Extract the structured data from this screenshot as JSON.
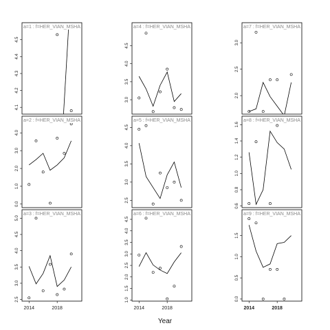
{
  "chart_data": {
    "type": "scatter",
    "xlabel": "Year",
    "x_ticks": [
      2014,
      2018
    ],
    "panels": [
      {
        "label": "a=1 : f=HER_VIAN_MSHA",
        "xlim": [
          2013,
          2021.5
        ],
        "ylim": [
          4.06,
          4.56
        ],
        "y_ticks": [
          4.1,
          4.2,
          4.3,
          4.4,
          4.5
        ],
        "y_tick_labels": [
          "4.1",
          "4.2",
          "4.3",
          "4.4",
          "4.5"
        ],
        "points": [
          {
            "x": 2018,
            "y": 4.53
          },
          {
            "x": 2020,
            "y": 4.08
          }
        ],
        "line": [
          {
            "x": 2018.9,
            "y": 4.06
          },
          {
            "x": 2019.6,
            "y": 4.56
          }
        ],
        "bold_x": false
      },
      {
        "label": "a=4 : f=HER_VIAN_MSHA",
        "xlim": [
          2013,
          2021.5
        ],
        "ylim": [
          2.6,
          4.95
        ],
        "y_ticks": [
          3.0,
          3.5,
          4.0,
          4.5
        ],
        "y_tick_labels": [
          "3.0",
          "3.5",
          "4.0",
          "4.5"
        ],
        "points": [
          {
            "x": 2014,
            "y": 3.05
          },
          {
            "x": 2015,
            "y": 4.85
          },
          {
            "x": 2016,
            "y": 2.67
          },
          {
            "x": 2017,
            "y": 3.22
          },
          {
            "x": 2018,
            "y": 3.85
          },
          {
            "x": 2019,
            "y": 2.78
          },
          {
            "x": 2020,
            "y": 2.73
          }
        ],
        "line": [
          {
            "x": 2014,
            "y": 3.65
          },
          {
            "x": 2015,
            "y": 3.3
          },
          {
            "x": 2016,
            "y": 2.82
          },
          {
            "x": 2017,
            "y": 3.4
          },
          {
            "x": 2018,
            "y": 3.77
          },
          {
            "x": 2019,
            "y": 2.95
          },
          {
            "x": 2020,
            "y": 3.17
          }
        ],
        "bold_x": false
      },
      {
        "label": "a=7 : f=HER_VIAN_MSHA",
        "xlim": [
          2013,
          2021.5
        ],
        "ylim": [
          1.65,
          3.25
        ],
        "y_ticks": [
          2.0,
          2.5,
          3.0
        ],
        "y_tick_labels": [
          "2.0",
          "2.5",
          "3.0"
        ],
        "points": [
          {
            "x": 2014,
            "y": 1.7
          },
          {
            "x": 2015,
            "y": 3.2
          },
          {
            "x": 2016,
            "y": 1.7
          },
          {
            "x": 2017,
            "y": 2.3
          },
          {
            "x": 2018,
            "y": 2.3
          },
          {
            "x": 2020,
            "y": 2.4
          }
        ],
        "line": [
          {
            "x": 2014,
            "y": 1.7
          },
          {
            "x": 2015,
            "y": 1.75
          },
          {
            "x": 2016,
            "y": 2.25
          },
          {
            "x": 2017,
            "y": 1.98
          },
          {
            "x": 2018,
            "y": 1.8
          },
          {
            "x": 2019,
            "y": 1.62
          },
          {
            "x": 2020,
            "y": 2.25
          }
        ],
        "bold_x": false
      },
      {
        "label": "a=2 : f=HER_VIAN_MSHA",
        "xlim": [
          2013,
          2021.5
        ],
        "ylim": [
          -0.2,
          4.55
        ],
        "y_ticks": [
          0,
          1,
          2,
          3,
          4
        ],
        "y_tick_labels": [
          "0.0",
          "1.0",
          "2.0",
          "3.0",
          "4.0"
        ],
        "points": [
          {
            "x": 2014,
            "y": 1.1
          },
          {
            "x": 2015,
            "y": 3.55
          },
          {
            "x": 2016,
            "y": 1.8
          },
          {
            "x": 2017,
            "y": 0.05
          },
          {
            "x": 2018,
            "y": 3.7
          },
          {
            "x": 2019,
            "y": 2.85
          },
          {
            "x": 2020,
            "y": 4.5
          }
        ],
        "line": [
          {
            "x": 2014,
            "y": 2.2
          },
          {
            "x": 2015,
            "y": 2.5
          },
          {
            "x": 2016,
            "y": 2.85
          },
          {
            "x": 2017,
            "y": 1.9
          },
          {
            "x": 2018,
            "y": 2.2
          },
          {
            "x": 2019,
            "y": 2.6
          },
          {
            "x": 2020,
            "y": 3.55
          }
        ],
        "bold_x": false
      },
      {
        "label": "a=5 : f=HER_VIAN_MSHA",
        "xlim": [
          2013,
          2021.5
        ],
        "ylim": [
          2.3,
          4.62
        ],
        "y_ticks": [
          2.5,
          3.0,
          3.5,
          4.0,
          4.5
        ],
        "y_tick_labels": [
          "2.5",
          "3.0",
          "3.5",
          "4.0",
          "4.5"
        ],
        "points": [
          {
            "x": 2014,
            "y": 4.45
          },
          {
            "x": 2015,
            "y": 4.55
          },
          {
            "x": 2016,
            "y": 2.4
          },
          {
            "x": 2017,
            "y": 3.25
          },
          {
            "x": 2018,
            "y": 2.85
          },
          {
            "x": 2019,
            "y": 3.0
          },
          {
            "x": 2020,
            "y": 2.5
          }
        ],
        "line": [
          {
            "x": 2014,
            "y": 4.07
          },
          {
            "x": 2015,
            "y": 3.15
          },
          {
            "x": 2016,
            "y": 2.85
          },
          {
            "x": 2017,
            "y": 2.55
          },
          {
            "x": 2018,
            "y": 3.2
          },
          {
            "x": 2019,
            "y": 3.55
          },
          {
            "x": 2020,
            "y": 2.85
          }
        ],
        "bold_x": false
      },
      {
        "label": "a=8 : f=HER_VIAN_MSHA",
        "xlim": [
          2013,
          2021.5
        ],
        "ylim": [
          0.58,
          1.62
        ],
        "y_ticks": [
          0.6,
          0.8,
          1.0,
          1.2,
          1.4,
          1.6
        ],
        "y_tick_labels": [
          "0.6",
          "0.8",
          "1.0",
          "1.2",
          "1.4",
          "1.6"
        ],
        "points": [
          {
            "x": 2014,
            "y": 0.63
          },
          {
            "x": 2015,
            "y": 1.39
          },
          {
            "x": 2017,
            "y": 0.63
          },
          {
            "x": 2018,
            "y": 1.59
          }
        ],
        "line": [
          {
            "x": 2014,
            "y": 1.26
          },
          {
            "x": 2015,
            "y": 0.62
          },
          {
            "x": 2016,
            "y": 0.8
          },
          {
            "x": 2017,
            "y": 1.52
          },
          {
            "x": 2018,
            "y": 1.38
          },
          {
            "x": 2019,
            "y": 1.3
          },
          {
            "x": 2020,
            "y": 1.05
          }
        ],
        "bold_x": false
      },
      {
        "label": "a=3 : f=HER_VIAN_MSHA",
        "xlim": [
          2013,
          2021.5
        ],
        "ylim": [
          2.45,
          5.05
        ],
        "y_ticks": [
          2.5,
          3.0,
          3.5,
          4.0,
          4.5,
          5.0
        ],
        "y_tick_labels": [
          "2.5",
          "3.0",
          "3.5",
          "4.0",
          "4.5",
          "5.0"
        ],
        "points": [
          {
            "x": 2014,
            "y": 2.55
          },
          {
            "x": 2015,
            "y": 5.0
          },
          {
            "x": 2016,
            "y": 2.77
          },
          {
            "x": 2017,
            "y": 3.58
          },
          {
            "x": 2018,
            "y": 2.65
          },
          {
            "x": 2019,
            "y": 2.82
          },
          {
            "x": 2020,
            "y": 3.9
          }
        ],
        "line": [
          {
            "x": 2014,
            "y": 3.52
          },
          {
            "x": 2015,
            "y": 2.98
          },
          {
            "x": 2016,
            "y": 3.3
          },
          {
            "x": 2017,
            "y": 3.85
          },
          {
            "x": 2018,
            "y": 2.9
          },
          {
            "x": 2019,
            "y": 3.1
          },
          {
            "x": 2020,
            "y": 3.5
          }
        ],
        "bold_x": false
      },
      {
        "label": "a=6 : f=HER_VIAN_MSHA",
        "xlim": [
          2013,
          2021.5
        ],
        "ylim": [
          0.95,
          4.62
        ],
        "y_ticks": [
          1.0,
          1.5,
          2.0,
          2.5,
          3.0,
          3.5,
          4.0,
          4.5
        ],
        "y_tick_labels": [
          "1.0",
          "1.5",
          "2.0",
          "2.5",
          "3.0",
          "3.5",
          "4.0",
          "4.5"
        ],
        "points": [
          {
            "x": 2014,
            "y": 2.95
          },
          {
            "x": 2015,
            "y": 4.55
          },
          {
            "x": 2016,
            "y": 2.2
          },
          {
            "x": 2017,
            "y": 2.38
          },
          {
            "x": 2018,
            "y": 1.05
          },
          {
            "x": 2019,
            "y": 1.6
          },
          {
            "x": 2020,
            "y": 3.32
          }
        ],
        "line": [
          {
            "x": 2014,
            "y": 2.45
          },
          {
            "x": 2015,
            "y": 3.05
          },
          {
            "x": 2016,
            "y": 2.52
          },
          {
            "x": 2017,
            "y": 2.3
          },
          {
            "x": 2018,
            "y": 2.15
          },
          {
            "x": 2019,
            "y": 2.65
          },
          {
            "x": 2020,
            "y": 3.05
          }
        ],
        "bold_x": false
      },
      {
        "label": "a=9 : f=HER_VIAN_MSHA",
        "xlim": [
          2013,
          2021.5
        ],
        "ylim": [
          -0.05,
          1.95
        ],
        "y_ticks": [
          0.0,
          0.5,
          1.0,
          1.5
        ],
        "y_tick_labels": [
          "0.0",
          "0.5",
          "1.0",
          "1.5"
        ],
        "points": [
          {
            "x": 2014,
            "y": 1.9
          },
          {
            "x": 2015,
            "y": 1.8
          },
          {
            "x": 2016,
            "y": 0.0
          },
          {
            "x": 2017,
            "y": 0.7
          },
          {
            "x": 2018,
            "y": 0.7
          },
          {
            "x": 2019,
            "y": 0.0
          }
        ],
        "line": [
          {
            "x": 2014,
            "y": 1.75
          },
          {
            "x": 2015,
            "y": 1.13
          },
          {
            "x": 2016,
            "y": 0.75
          },
          {
            "x": 2017,
            "y": 0.83
          },
          {
            "x": 2018,
            "y": 1.31
          },
          {
            "x": 2019,
            "y": 1.34
          },
          {
            "x": 2020,
            "y": 1.5
          }
        ],
        "bold_x": true
      }
    ]
  }
}
